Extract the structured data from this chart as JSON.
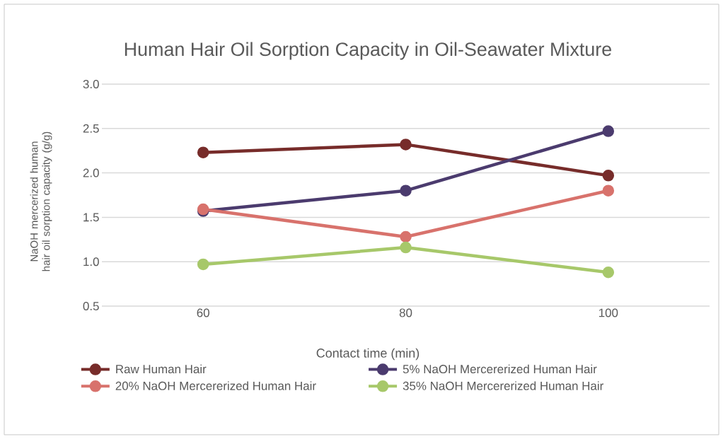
{
  "chart_data": {
    "type": "line",
    "title": "Human Hair Oil Sorption Capacity in Oil-Seawater Mixture",
    "xlabel": "Contact time (min)",
    "ylabel": "NaOH mercerized  human hair oil sorption capacity (g/g)",
    "categories": [
      "60",
      "80",
      "100"
    ],
    "series": [
      {
        "name": "Raw Human Hair",
        "color": "#772c2a",
        "values": [
          2.23,
          2.32,
          1.97
        ]
      },
      {
        "name": "5% NaOH Mercererized Human Hair",
        "color": "#4b3b6e",
        "values": [
          1.57,
          1.8,
          2.47
        ]
      },
      {
        "name": "20% NaOH Mercererized Human Hair",
        "color": "#d8726c",
        "values": [
          1.59,
          1.28,
          1.8
        ]
      },
      {
        "name": "35% NaOH Mercererized Human Hair",
        "color": "#a7c86a",
        "values": [
          0.97,
          1.16,
          0.88
        ]
      }
    ],
    "ylim": [
      0.5,
      3.0
    ],
    "yticks": [
      {
        "value": 0.5,
        "label": "0.5"
      },
      {
        "value": 1.0,
        "label": "1.0"
      },
      {
        "value": 1.5,
        "label": "1.5"
      },
      {
        "value": 2.0,
        "label": "2.0"
      },
      {
        "value": 2.5,
        "label": "2.5"
      },
      {
        "value": 3.0,
        "label": "3.0"
      }
    ],
    "grid": "y",
    "legend": "bottom",
    "marker": "circle",
    "line_style": "solid"
  }
}
